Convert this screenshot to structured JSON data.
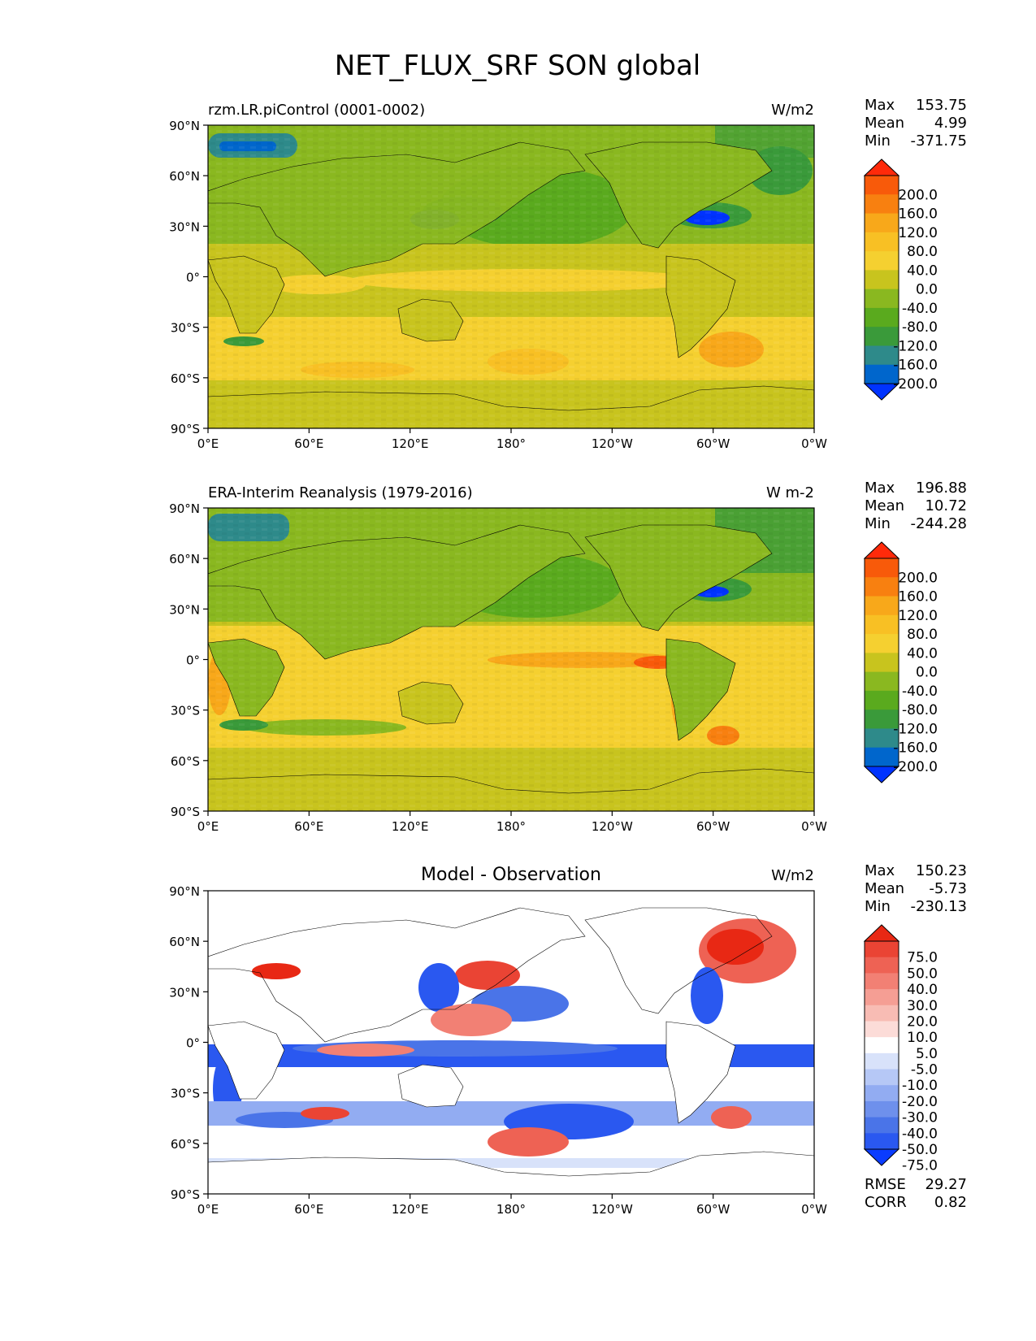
{
  "title": "NET_FLUX_SRF SON global",
  "axis_labels": {
    "lat": [
      "90°N",
      "60°N",
      "30°N",
      "0°",
      "30°S",
      "60°S",
      "90°S"
    ],
    "lon": [
      "0°E",
      "60°E",
      "120°E",
      "180°",
      "120°W",
      "60°W",
      "0°W"
    ]
  },
  "colormaps": {
    "field": [
      "#0033ff",
      "#0066cc",
      "#2e8a8a",
      "#3a9a3a",
      "#5aaa1e",
      "#8ab820",
      "#c8c41e",
      "#f5d030",
      "#f8c024",
      "#f8a81a",
      "#f88010",
      "#f85a0a",
      "#ff2a0a"
    ],
    "diff": [
      "#0a3cff",
      "#2a58f0",
      "#4a74e8",
      "#6e90ec",
      "#92acf2",
      "#b6c8f6",
      "#d8e2fa",
      "#ffffff",
      "#fcdcd8",
      "#f8bcb4",
      "#f59e94",
      "#f28074",
      "#ee6254",
      "#ea4434",
      "#e82814"
    ]
  },
  "panels": [
    {
      "id": "model",
      "left_title": "rzm.LR.piControl (0001-0002)",
      "center_title": "",
      "units": "W/m2",
      "stats": [
        {
          "label": "Max",
          "value": "153.75"
        },
        {
          "label": "Mean",
          "value": "4.99"
        },
        {
          "label": "Min",
          "value": "-371.75"
        }
      ],
      "colorbar_labels": [
        "200.0",
        "160.0",
        "120.0",
        "80.0",
        "40.0",
        "0.0",
        "-40.0",
        "-80.0",
        "-120.0",
        "-160.0",
        "-200.0"
      ],
      "colormap": "field",
      "footer": []
    },
    {
      "id": "obs",
      "left_title": "ERA-Interim Reanalysis (1979-2016)",
      "center_title": "",
      "units": "W m-2",
      "stats": [
        {
          "label": "Max",
          "value": "196.88"
        },
        {
          "label": "Mean",
          "value": "10.72"
        },
        {
          "label": "Min",
          "value": "-244.28"
        }
      ],
      "colorbar_labels": [
        "200.0",
        "160.0",
        "120.0",
        "80.0",
        "40.0",
        "0.0",
        "-40.0",
        "-80.0",
        "-120.0",
        "-160.0",
        "-200.0"
      ],
      "colormap": "field",
      "footer": []
    },
    {
      "id": "diff",
      "left_title": "",
      "center_title": "Model - Observation",
      "units": "W/m2",
      "stats": [
        {
          "label": "Max",
          "value": "150.23"
        },
        {
          "label": "Mean",
          "value": "-5.73"
        },
        {
          "label": "Min",
          "value": "-230.13"
        }
      ],
      "colorbar_labels": [
        "75.0",
        "50.0",
        "40.0",
        "30.0",
        "20.0",
        "10.0",
        "5.0",
        "-5.0",
        "-10.0",
        "-20.0",
        "-30.0",
        "-40.0",
        "-50.0",
        "-75.0"
      ],
      "colormap": "diff",
      "footer": [
        {
          "label": "RMSE",
          "value": "29.27"
        },
        {
          "label": "CORR",
          "value": "0.82"
        }
      ]
    }
  ]
}
